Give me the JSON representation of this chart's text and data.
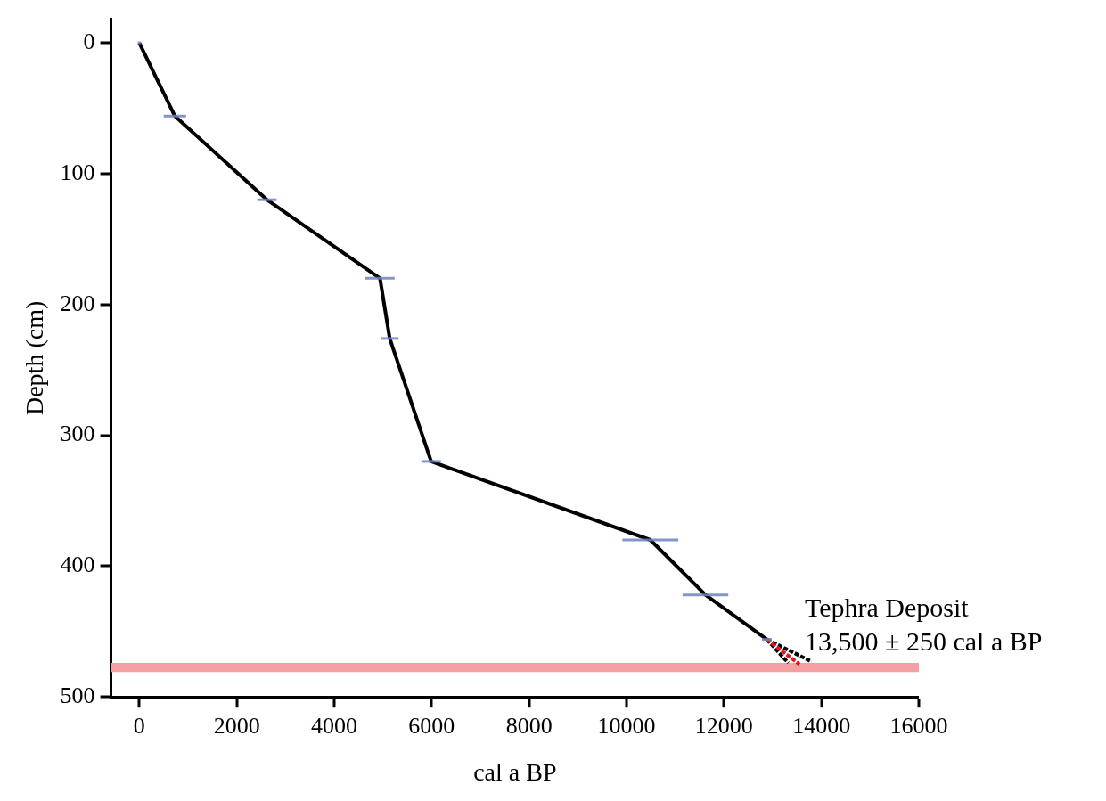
{
  "chart_data": {
    "type": "line",
    "xlabel": "cal a BP",
    "ylabel": "Depth (cm)",
    "xlim": [
      -580,
      16000
    ],
    "ylim": [
      500,
      -18
    ],
    "xticks": [
      0,
      2000,
      4000,
      6000,
      8000,
      10000,
      12000,
      14000,
      16000
    ],
    "yticks": [
      0,
      100,
      200,
      300,
      400,
      500
    ],
    "grid": false,
    "legend": false,
    "marker": "none",
    "annotations": [
      "Tephra Deposit",
      "13,500 ± 250 cal a BP"
    ],
    "bands": [
      {
        "axis": "y",
        "from": 474,
        "to": 481,
        "color": "#f4a0a0"
      }
    ],
    "series": [
      {
        "color": "#000000",
        "x": [
          0,
          730,
          2620,
          4940,
          5140,
          5990,
          10490,
          11620,
          12880
        ],
        "values": [
          0,
          56,
          120,
          180,
          226,
          320,
          380,
          422,
          456
        ],
        "xerrors": [
          30,
          230,
          200,
          300,
          180,
          200,
          575,
          470,
          100
        ]
      },
      {
        "color": "#000000",
        "line_style": "dashed",
        "x": [
          12880,
          13320
        ],
        "values": [
          456,
          474
        ]
      },
      {
        "color": "#000000",
        "line_style": "dashed",
        "x": [
          12880,
          13800
        ],
        "values": [
          456,
          473
        ]
      },
      {
        "color": "#e8141c",
        "line_style": "dashed",
        "x": [
          12880,
          13550
        ],
        "values": [
          456,
          475
        ]
      }
    ]
  }
}
